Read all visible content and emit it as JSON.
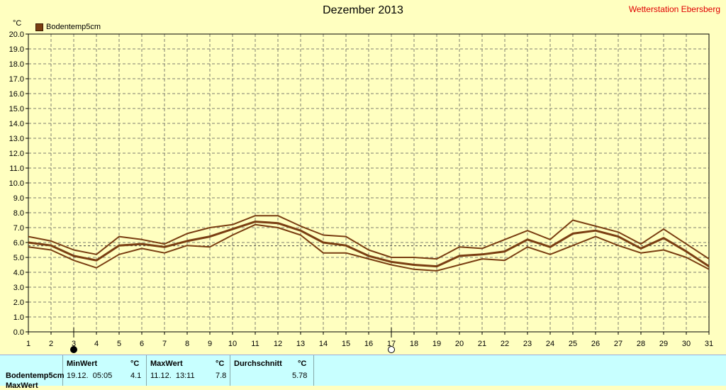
{
  "title": "Dezember 2013",
  "station": "Wetterstation Ebersberg",
  "unit": "°C",
  "legend": {
    "label": "Bodentemp5cm",
    "color": "#7a3e12"
  },
  "chart_data": {
    "type": "line",
    "title": "Dezember 2013",
    "ylabel": "°C",
    "xlabel": "",
    "x": [
      1,
      2,
      3,
      4,
      5,
      6,
      7,
      8,
      9,
      10,
      11,
      12,
      13,
      14,
      15,
      16,
      17,
      18,
      19,
      20,
      21,
      22,
      23,
      24,
      25,
      26,
      27,
      28,
      29,
      30,
      31
    ],
    "ylim": [
      0,
      20
    ],
    "yticks": [
      "0.0",
      "1.0",
      "2.0",
      "3.0",
      "4.0",
      "5.0",
      "6.0",
      "7.0",
      "8.0",
      "9.0",
      "10.0",
      "11.0",
      "12.0",
      "13.0",
      "14.0",
      "15.0",
      "16.0",
      "17.0",
      "18.0",
      "19.0",
      "20.0"
    ],
    "grid": true,
    "legend_position": "top-left",
    "series": [
      {
        "name": "Bodentemp5cm",
        "role": "max",
        "values": [
          6.4,
          6.1,
          5.5,
          5.2,
          6.4,
          6.2,
          5.9,
          6.6,
          7.0,
          7.2,
          7.8,
          7.8,
          7.1,
          6.5,
          6.4,
          5.5,
          5.0,
          5.0,
          4.9,
          5.7,
          5.6,
          6.2,
          6.8,
          6.2,
          7.5,
          7.1,
          6.7,
          5.9,
          6.9,
          5.9,
          4.9
        ]
      },
      {
        "name": "Bodentemp5cm",
        "role": "avg",
        "values": [
          6.0,
          5.8,
          5.1,
          4.8,
          5.8,
          5.9,
          5.7,
          6.1,
          6.4,
          6.9,
          7.4,
          7.3,
          6.8,
          6.0,
          5.8,
          5.1,
          4.7,
          4.5,
          4.4,
          5.1,
          5.2,
          5.4,
          6.2,
          5.7,
          6.6,
          6.8,
          6.4,
          5.6,
          6.3,
          5.4,
          4.4
        ]
      },
      {
        "name": "Bodentemp5cm",
        "role": "min",
        "values": [
          5.7,
          5.5,
          4.8,
          4.3,
          5.2,
          5.6,
          5.3,
          5.8,
          5.7,
          6.5,
          7.2,
          7.0,
          6.5,
          5.3,
          5.3,
          4.9,
          4.5,
          4.2,
          4.1,
          4.5,
          4.9,
          4.8,
          5.7,
          5.2,
          5.8,
          6.4,
          5.8,
          5.3,
          5.5,
          5.0,
          4.2
        ]
      }
    ],
    "average_line": 5.78,
    "markers": [
      {
        "day": 3,
        "symbol": "new-moon"
      },
      {
        "day": 17,
        "symbol": "full-moon"
      }
    ]
  },
  "stats": {
    "row_label": "Bodentemp5cm",
    "next_row_label": "MaxWert",
    "min": {
      "header": "MinWert",
      "unit": "°C",
      "date": "19.12.  05:05",
      "value": "4.1"
    },
    "max": {
      "header": "MaxWert",
      "unit": "°C",
      "date": "11.12.  13:11",
      "value": "7.8"
    },
    "avg": {
      "header": "Durchschnitt",
      "unit": "°C",
      "value": "5.78"
    }
  }
}
